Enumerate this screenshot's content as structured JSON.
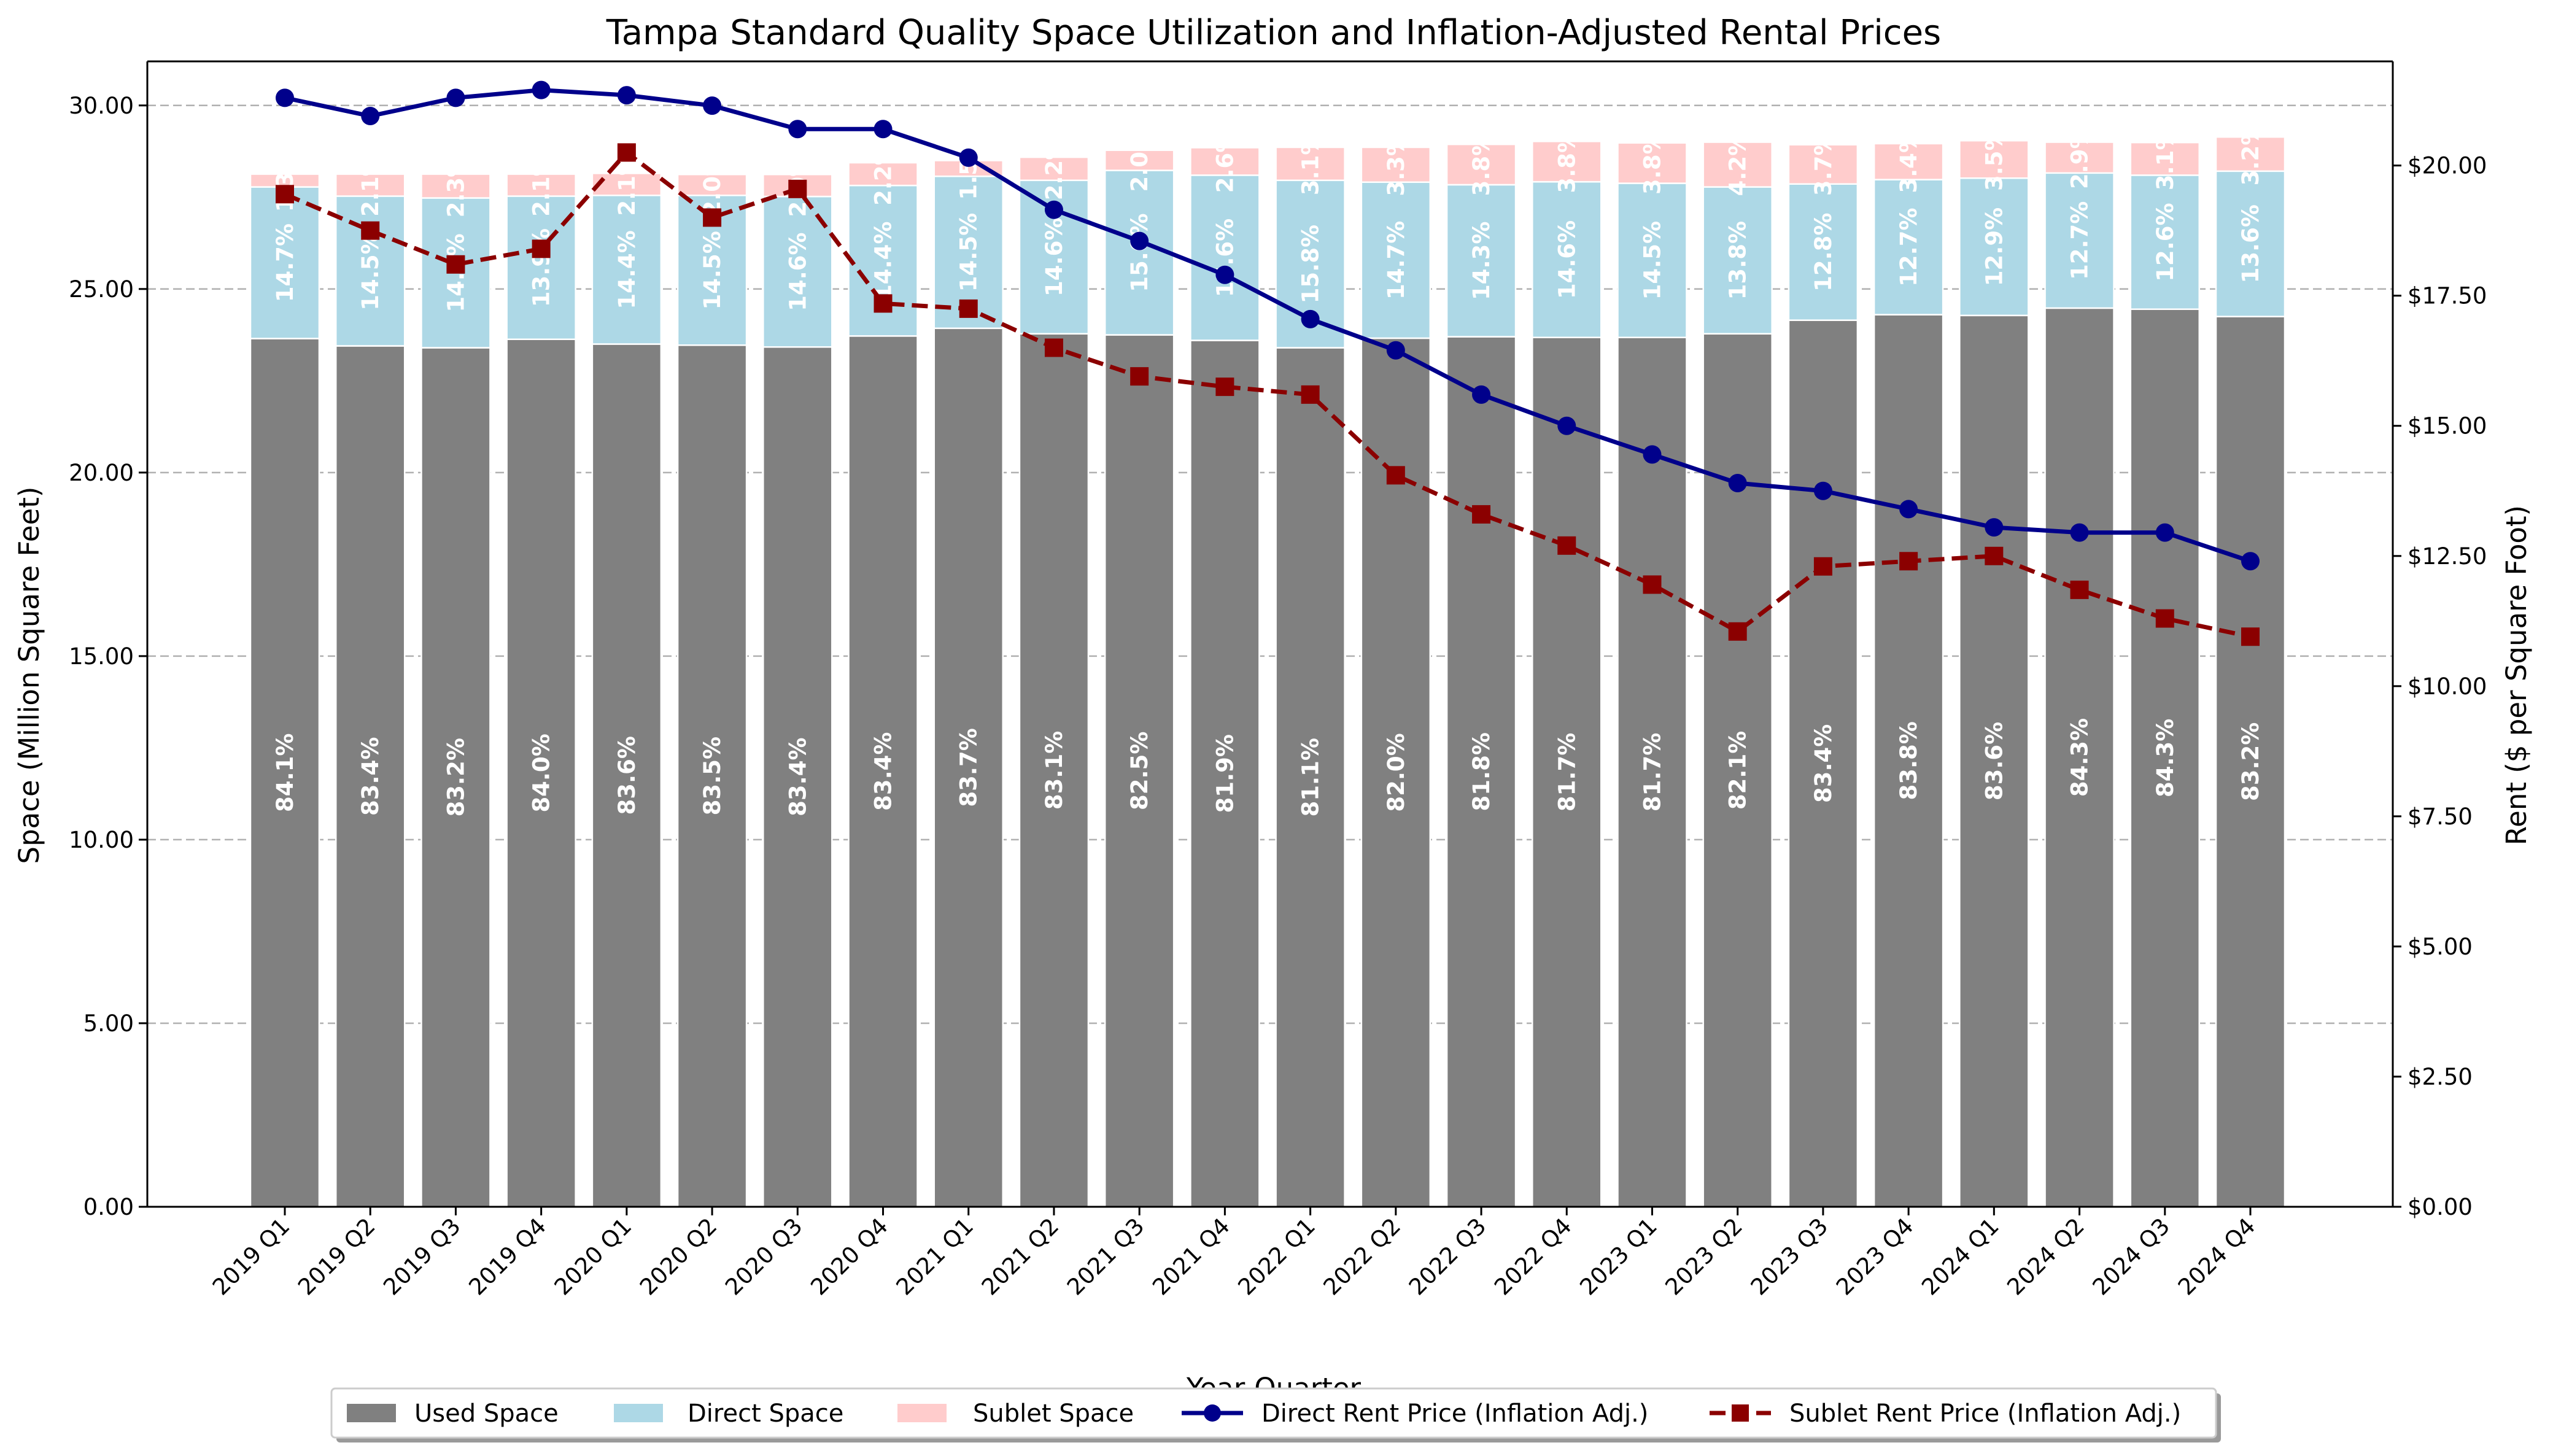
{
  "chart_data": {
    "type": "bar",
    "title": "Tampa Standard Quality Space Utilization and Inflation-Adjusted Rental Prices",
    "xlabel": "Year-Quarter",
    "ylabel": "Space (Million Square Feet)",
    "y2label": "Rent ($ per Square Foot)",
    "ylim": [
      0,
      31.2
    ],
    "y2lim": [
      0,
      22.0
    ],
    "yticks": [
      "0.00",
      "5.00",
      "10.00",
      "15.00",
      "20.00",
      "25.00",
      "30.00"
    ],
    "y2ticks": [
      "$0.00",
      "$2.50",
      "$5.00",
      "$7.50",
      "$10.00",
      "$12.50",
      "$15.00",
      "$17.50",
      "$20.00"
    ],
    "grid": "horizontal dashed",
    "legend_position": "bottom-center",
    "colors": {
      "used": "#808080",
      "direct": "#add8e6",
      "sublet": "#ffcccc",
      "direct_rent": "#00008b",
      "sublet_rent": "#8b0000"
    },
    "categories": [
      "2019 Q1",
      "2019 Q2",
      "2019 Q3",
      "2019 Q4",
      "2020 Q1",
      "2020 Q2",
      "2020 Q3",
      "2020 Q4",
      "2021 Q1",
      "2021 Q2",
      "2021 Q3",
      "2021 Q4",
      "2022 Q1",
      "2022 Q2",
      "2022 Q3",
      "2022 Q4",
      "2023 Q1",
      "2023 Q2",
      "2023 Q3",
      "2023 Q4",
      "2024 Q1",
      "2024 Q2",
      "2024 Q3",
      "2024 Q4"
    ],
    "series": [
      {
        "name": "Used Space",
        "kind": "bar",
        "values": [
          23.65,
          23.45,
          23.4,
          23.63,
          23.5,
          23.47,
          23.42,
          23.72,
          23.93,
          23.78,
          23.75,
          23.6,
          23.4,
          23.66,
          23.7,
          23.68,
          23.68,
          23.78,
          24.15,
          24.3,
          24.28,
          24.48,
          24.45,
          24.25
        ],
        "labels": [
          "84.1%",
          "83.4%",
          "83.2%",
          "84.0%",
          "83.6%",
          "83.5%",
          "83.4%",
          "83.4%",
          "83.7%",
          "83.1%",
          "82.5%",
          "81.9%",
          "81.1%",
          "82.0%",
          "81.8%",
          "81.7%",
          "81.7%",
          "82.1%",
          "83.4%",
          "83.8%",
          "83.6%",
          "84.3%",
          "84.3%",
          "83.2%"
        ]
      },
      {
        "name": "Direct Space",
        "kind": "bar",
        "values": [
          4.13,
          4.08,
          4.08,
          3.9,
          4.05,
          4.08,
          4.1,
          4.1,
          4.14,
          4.18,
          4.48,
          4.5,
          4.56,
          4.25,
          4.14,
          4.24,
          4.2,
          4.0,
          3.71,
          3.68,
          3.74,
          3.68,
          3.65,
          3.96
        ],
        "labels": [
          "14.7%",
          "14.5%",
          "14.5%",
          "13.9%",
          "14.4%",
          "14.5%",
          "14.6%",
          "14.4%",
          "14.5%",
          "14.6%",
          "15.6%",
          "15.6%",
          "15.8%",
          "14.7%",
          "14.3%",
          "14.6%",
          "14.5%",
          "13.8%",
          "12.8%",
          "12.7%",
          "12.9%",
          "12.7%",
          "12.6%",
          "13.6%"
        ]
      },
      {
        "name": "Sublet Space",
        "kind": "bar",
        "values": [
          0.35,
          0.6,
          0.65,
          0.6,
          0.6,
          0.57,
          0.6,
          0.62,
          0.43,
          0.63,
          0.55,
          0.75,
          0.9,
          0.95,
          1.1,
          1.1,
          1.1,
          1.22,
          1.07,
          0.98,
          1.02,
          0.84,
          0.89,
          0.93
        ],
        "labels": [
          "1.3%",
          "2.1%",
          "2.3%",
          "2.1%",
          "2.1%",
          "2.0%",
          "2.0%",
          "2.2%",
          "1.5%",
          "2.2%",
          "2.0%",
          "2.6%",
          "3.1%",
          "3.3%",
          "3.8%",
          "3.8%",
          "3.8%",
          "4.2%",
          "3.7%",
          "3.4%",
          "3.5%",
          "2.9%",
          "3.1%",
          "3.2%"
        ]
      },
      {
        "name": "Direct Rent Price (Inflation Adj.)",
        "kind": "line",
        "axis": "right",
        "values": [
          21.3,
          20.95,
          21.3,
          21.45,
          21.35,
          21.15,
          20.7,
          20.7,
          20.15,
          19.15,
          18.55,
          17.9,
          17.05,
          16.45,
          15.6,
          15.0,
          14.45,
          13.9,
          13.75,
          13.4,
          13.05,
          12.95,
          12.95,
          12.4
        ]
      },
      {
        "name": "Sublet Rent Price (Inflation Adj.)",
        "kind": "line",
        "axis": "right",
        "dashed": true,
        "values": [
          19.45,
          18.75,
          18.1,
          18.4,
          20.25,
          19.0,
          19.55,
          17.35,
          17.25,
          16.5,
          15.95,
          15.75,
          15.6,
          14.05,
          13.3,
          12.7,
          11.95,
          11.05,
          12.3,
          12.4,
          12.5,
          11.85,
          11.3,
          10.95
        ]
      }
    ]
  }
}
